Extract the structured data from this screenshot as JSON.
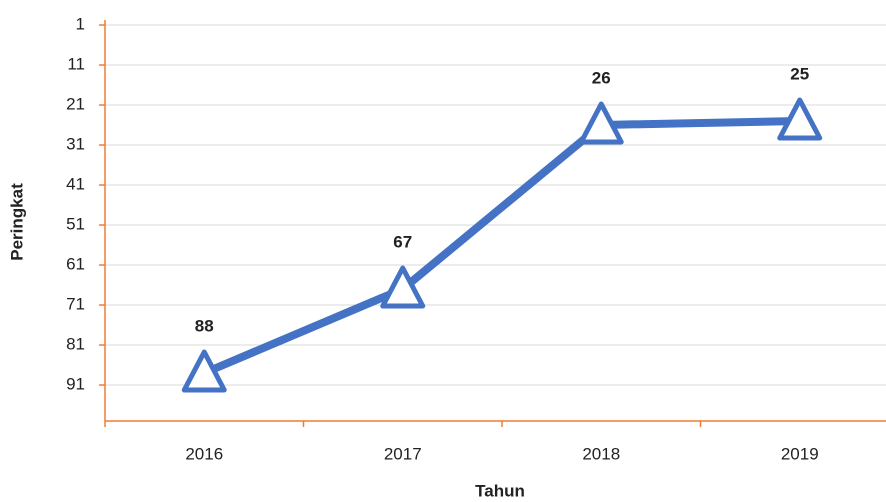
{
  "chart_data": {
    "type": "line",
    "x_label": "Tahun",
    "y_label": "Peringkat",
    "categories": [
      "2016",
      "2017",
      "2018",
      "2019"
    ],
    "series": [
      {
        "name": "Peringkat",
        "color": "#4472c4",
        "values": [
          88,
          67,
          26,
          25
        ]
      }
    ],
    "ylim": [
      1,
      100
    ],
    "y_inverted": true,
    "yticks": [
      1,
      11,
      21,
      31,
      41,
      51,
      61,
      71,
      81,
      91
    ],
    "grid": true,
    "axis_color": "#ed7d31",
    "marker": "triangle",
    "data_labels": true
  }
}
